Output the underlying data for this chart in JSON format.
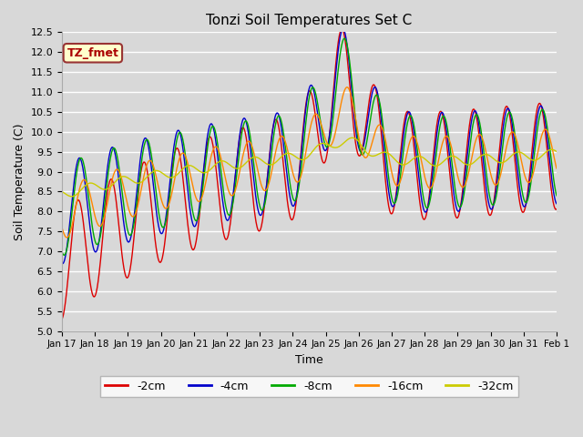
{
  "title": "Tonzi Soil Temperatures Set C",
  "xlabel": "Time",
  "ylabel": "Soil Temperature (C)",
  "ylim": [
    5.0,
    12.5
  ],
  "yticks": [
    5.0,
    5.5,
    6.0,
    6.5,
    7.0,
    7.5,
    8.0,
    8.5,
    9.0,
    9.5,
    10.0,
    10.5,
    11.0,
    11.5,
    12.0,
    12.5
  ],
  "xtick_labels": [
    "Jan 17",
    "Jan 18",
    "Jan 19",
    "Jan 20",
    "Jan 21",
    "Jan 22",
    "Jan 23",
    "Jan 24",
    "Jan 25",
    "Jan 26",
    "Jan 27",
    "Jan 28",
    "Jan 29",
    "Jan 30",
    "Jan 31",
    "Feb 1"
  ],
  "series_colors": {
    "-2cm": "#dd0000",
    "-4cm": "#0000cc",
    "-8cm": "#00aa00",
    "-16cm": "#ff8800",
    "-32cm": "#cccc00"
  },
  "legend_label": "TZ_fmet",
  "legend_bg": "#ffffcc",
  "legend_border": "#993333",
  "bg_color": "#d8d8d8",
  "n_points": 1000
}
